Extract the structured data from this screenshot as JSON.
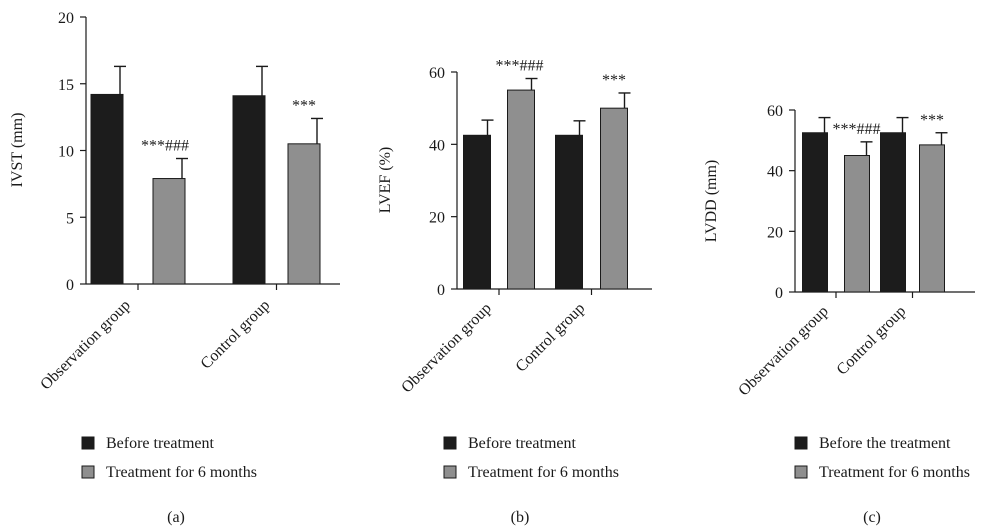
{
  "colors": {
    "dark": "#1c1c1c",
    "gray": "#8f8f8f",
    "axis": "#1a1a1a"
  },
  "chart_data": [
    {
      "type": "bar",
      "panel_label": "(a)",
      "ylabel": "IVST (mm)",
      "ylim": [
        0,
        20
      ],
      "yticks": [
        0,
        5,
        10,
        15,
        20
      ],
      "categories": [
        "Observation group",
        "Control group"
      ],
      "series": [
        {
          "name": "Before treatment",
          "color": "#1c1c1c",
          "values": [
            14.2,
            14.1
          ],
          "errors": [
            2.1,
            2.2
          ]
        },
        {
          "name": "Treatment for 6 months",
          "color": "#8f8f8f",
          "values": [
            7.9,
            10.5
          ],
          "errors": [
            1.5,
            1.9
          ]
        }
      ],
      "annotations": [
        {
          "category": 0,
          "series": 1,
          "text": "***###"
        },
        {
          "category": 1,
          "series": 1,
          "text": "***"
        }
      ],
      "legend": [
        "Before treatment",
        "Treatment for 6 months"
      ]
    },
    {
      "type": "bar",
      "panel_label": "(b)",
      "ylabel": "LVEF (%)",
      "ylim": [
        0,
        60
      ],
      "yticks": [
        0,
        20,
        40,
        60
      ],
      "categories": [
        "Observation group",
        "Control group"
      ],
      "series": [
        {
          "name": "Before treatment",
          "color": "#1c1c1c",
          "values": [
            42.5,
            42.5
          ],
          "errors": [
            4.2,
            4.0
          ]
        },
        {
          "name": "Treatment for 6 months",
          "color": "#8f8f8f",
          "values": [
            55.0,
            50.0
          ],
          "errors": [
            3.2,
            4.2
          ]
        }
      ],
      "annotations": [
        {
          "category": 0,
          "series": 1,
          "text": "***###"
        },
        {
          "category": 1,
          "series": 1,
          "text": "***"
        }
      ],
      "legend": [
        "Before treatment",
        "Treatment for 6 months"
      ]
    },
    {
      "type": "bar",
      "panel_label": "(c)",
      "ylabel": "LVDD (mm)",
      "ylim": [
        0,
        60
      ],
      "yticks": [
        0,
        20,
        40,
        60
      ],
      "categories": [
        "Observation group",
        "Control group"
      ],
      "series": [
        {
          "name": "Before the treatment",
          "color": "#1c1c1c",
          "values": [
            52.5,
            52.5
          ],
          "errors": [
            5.0,
            5.0
          ]
        },
        {
          "name": "Treatment for 6 months",
          "color": "#8f8f8f",
          "values": [
            45.0,
            48.5
          ],
          "errors": [
            4.5,
            4.0
          ]
        }
      ],
      "annotations": [
        {
          "category": 0,
          "series": 1,
          "text": "***###"
        },
        {
          "category": 1,
          "series": 1,
          "text": "***"
        }
      ],
      "legend": [
        "Before the treatment",
        "Treatment for 6 months"
      ]
    }
  ]
}
